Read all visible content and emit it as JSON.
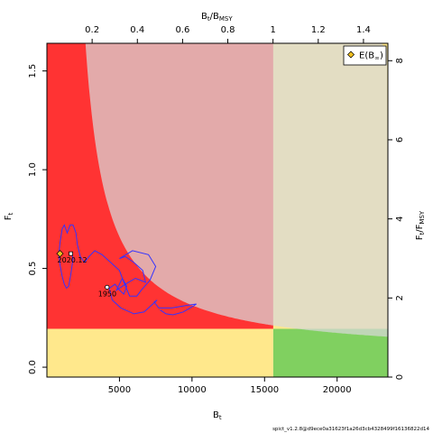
{
  "chart_data": {
    "type": "line",
    "xlim": [
      0,
      23500
    ],
    "ylim": [
      -0.05,
      1.64
    ],
    "x_top_lim": [
      0,
      1.508
    ],
    "y_right_lim": [
      0,
      8.44
    ],
    "bmsy": 15600,
    "fmsy": 0.1943,
    "xlabel": {
      "main": "B",
      "sub": "t"
    },
    "ylabel": {
      "main": "F",
      "sub": "t"
    },
    "top_label": {
      "b": "B",
      "b_sub": "t",
      "slash": "/",
      "bmsy": "B",
      "bmsy_sub": "MSY"
    },
    "right_label": {
      "f": "F",
      "f_sub": "t",
      "slash": "/",
      "fmsy": "F",
      "fmsy_sub": "MSY"
    },
    "x_ticks": [
      {
        "v": 5000,
        "label": "5000"
      },
      {
        "v": 10000,
        "label": "10000"
      },
      {
        "v": 15000,
        "label": "15000"
      },
      {
        "v": 20000,
        "label": "20000"
      }
    ],
    "y_ticks": [
      {
        "v": 0,
        "label": "0.0"
      },
      {
        "v": 0.5,
        "label": "0.5"
      },
      {
        "v": 1.0,
        "label": "1.0"
      },
      {
        "v": 1.5,
        "label": "1.5"
      }
    ],
    "top_ticks": [
      {
        "v": 0.2,
        "label": "0.2"
      },
      {
        "v": 0.4,
        "label": "0.4"
      },
      {
        "v": 0.6,
        "label": "0.6"
      },
      {
        "v": 0.8,
        "label": "0.8"
      },
      {
        "v": 1.0,
        "label": "1"
      },
      {
        "v": 1.2,
        "label": "1.2"
      },
      {
        "v": 1.4,
        "label": "1.4"
      }
    ],
    "right_ticks": [
      {
        "v": 0,
        "label": "0"
      },
      {
        "v": 2,
        "label": "2"
      },
      {
        "v": 4,
        "label": "4"
      },
      {
        "v": 6,
        "label": "6"
      },
      {
        "v": 8,
        "label": "8"
      }
    ],
    "zone_colors": {
      "red": "#ff3333",
      "yellow": "#ffe88c",
      "green": "#80d060",
      "band": "#d8d8d8",
      "series": "#3333ff",
      "marker": "#f0c020"
    },
    "trajectory": [
      [
        7800,
        0.29
      ],
      [
        8200,
        0.27
      ],
      [
        8700,
        0.265
      ],
      [
        9400,
        0.28
      ],
      [
        10100,
        0.31
      ],
      [
        10300,
        0.32
      ],
      [
        9800,
        0.315
      ],
      [
        8600,
        0.3
      ],
      [
        7700,
        0.3
      ],
      [
        7400,
        0.33
      ],
      [
        7600,
        0.34
      ],
      [
        7300,
        0.32
      ],
      [
        6700,
        0.28
      ],
      [
        6000,
        0.27
      ],
      [
        5100,
        0.3
      ],
      [
        4500,
        0.34
      ],
      [
        4300,
        0.4
      ],
      [
        4700,
        0.42
      ],
      [
        5000,
        0.39
      ],
      [
        5300,
        0.37
      ],
      [
        5500,
        0.41
      ],
      [
        5200,
        0.45
      ],
      [
        4800,
        0.39
      ],
      [
        5400,
        0.42
      ],
      [
        6100,
        0.45
      ],
      [
        6800,
        0.43
      ],
      [
        6600,
        0.49
      ],
      [
        6000,
        0.53
      ],
      [
        5400,
        0.56
      ],
      [
        5000,
        0.55
      ],
      [
        5900,
        0.59
      ],
      [
        7000,
        0.57
      ],
      [
        7500,
        0.51
      ],
      [
        7100,
        0.44
      ],
      [
        6500,
        0.39
      ],
      [
        6200,
        0.36
      ],
      [
        5700,
        0.36
      ],
      [
        5300,
        0.43
      ],
      [
        5000,
        0.49
      ],
      [
        4400,
        0.53
      ],
      [
        3800,
        0.57
      ],
      [
        3300,
        0.59
      ],
      [
        2900,
        0.56
      ],
      [
        2600,
        0.53
      ],
      [
        2300,
        0.56
      ],
      [
        2100,
        0.62
      ],
      [
        2000,
        0.68
      ],
      [
        1800,
        0.72
      ],
      [
        1600,
        0.72
      ],
      [
        1400,
        0.68
      ],
      [
        1200,
        0.72
      ],
      [
        1050,
        0.7
      ],
      [
        900,
        0.63
      ],
      [
        820,
        0.57
      ],
      [
        900,
        0.52
      ],
      [
        1050,
        0.46
      ],
      [
        1200,
        0.42
      ],
      [
        1350,
        0.4
      ],
      [
        1500,
        0.41
      ],
      [
        1650,
        0.47
      ],
      [
        1800,
        0.55
      ],
      [
        1680,
        0.58
      ]
    ],
    "start_point": {
      "x": 4150,
      "y": 0.405,
      "label": "1950"
    },
    "end_point": {
      "x": 1650,
      "y": 0.575,
      "label": "2020.12"
    },
    "expected_point": {
      "x": 900,
      "y": 0.575
    },
    "legend": {
      "label": "E(B",
      "sub": "∞",
      "close": ")",
      "position": "top-right"
    },
    "footer": "spict_v1.2.8@d9ece0a31623f1a26d3cb4328499f16136822d14"
  }
}
